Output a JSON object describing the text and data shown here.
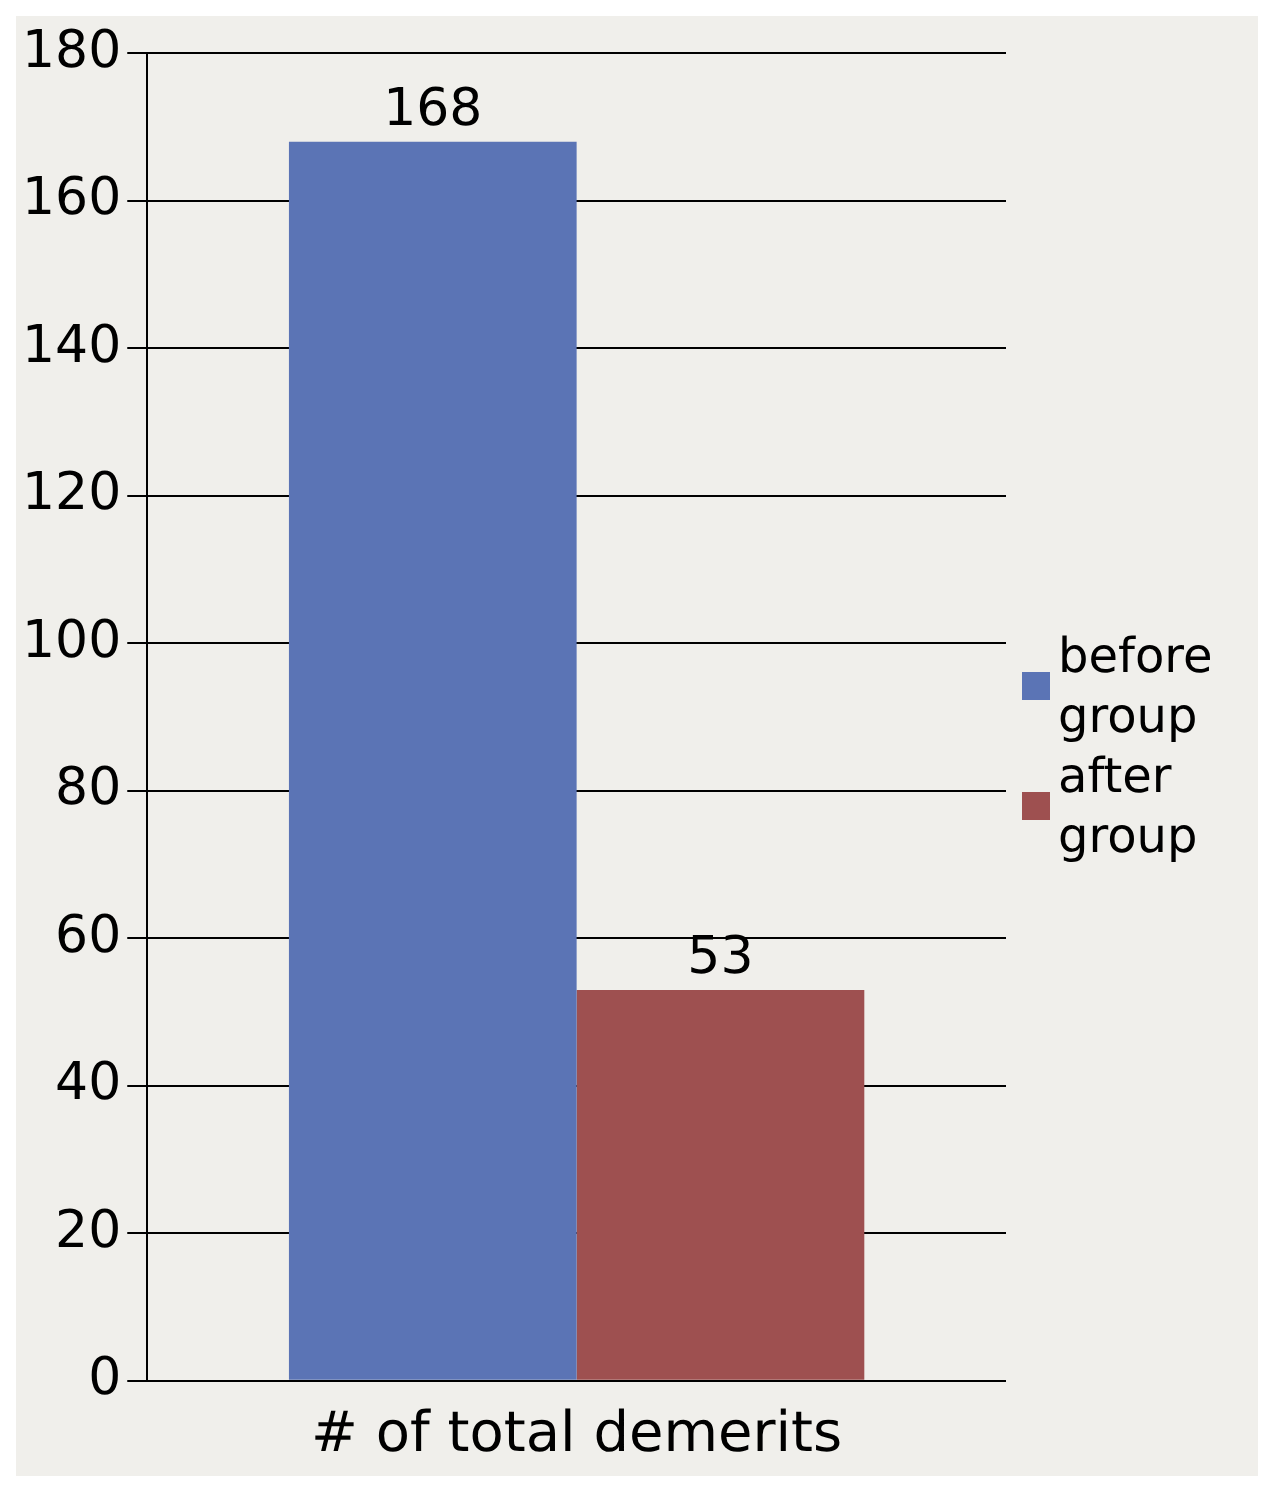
{
  "chart_data": {
    "type": "bar",
    "categories": [
      "# of total demerits"
    ],
    "series": [
      {
        "name": "before group",
        "color": "#5b74b5",
        "values": [
          168
        ]
      },
      {
        "name": "after group",
        "color": "#9e5050",
        "values": [
          53
        ]
      }
    ],
    "ylim": [
      0,
      180
    ],
    "yticks": [
      0,
      20,
      40,
      60,
      80,
      100,
      120,
      140,
      160,
      180
    ],
    "grid": "y",
    "legend": "right",
    "data_labels": true
  }
}
